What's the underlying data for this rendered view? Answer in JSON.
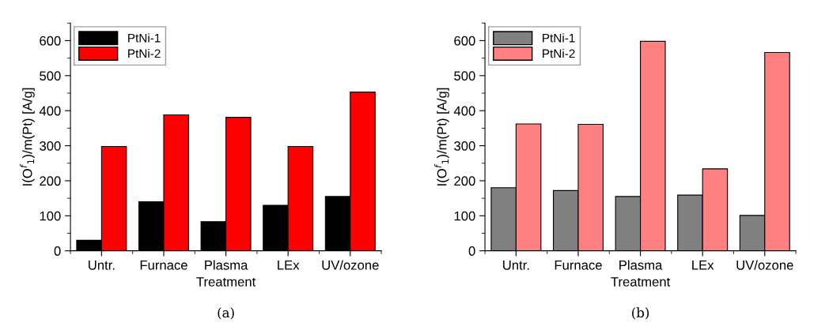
{
  "chart_data": [
    {
      "type": "bar",
      "xlabel": "Treatment",
      "ylabel": "I(O$^{f}$$_{1}$)/m(Pt) [A/g]",
      "categories": [
        "Untr.",
        "Furnace",
        "Plasma",
        "LEx",
        "UV/ozone"
      ],
      "series": [
        {
          "name": "PtNi-1",
          "color": "#000000",
          "values": [
            30,
            140,
            83,
            130,
            155
          ]
        },
        {
          "name": "PtNi-2",
          "color": "#ff0000",
          "values": [
            298,
            388,
            381,
            298,
            453
          ]
        }
      ],
      "ylim": [
        0,
        650
      ],
      "yticks": [
        0,
        100,
        200,
        300,
        400,
        500,
        600
      ],
      "grid": false,
      "legend": "top left",
      "annotations": [
        "(a)"
      ]
    },
    {
      "type": "bar",
      "xlabel": "Treatment",
      "ylabel": "I(O$^{f}$$_{1}$)/m(Pt) [A/g]",
      "categories": [
        "Untr.",
        "Furnace",
        "Plasma",
        "LEx",
        "UV/ozone"
      ],
      "series": [
        {
          "name": "PtNi-1",
          "color": "#808080",
          "values": [
            180,
            172,
            155,
            159,
            101
          ]
        },
        {
          "name": "PtNi-2",
          "color": "#ff8080",
          "values": [
            362,
            361,
            598,
            234,
            566
          ]
        }
      ],
      "ylim": [
        0,
        650
      ],
      "yticks": [
        0,
        100,
        200,
        300,
        400,
        500,
        600
      ],
      "grid": false,
      "legend": "top left",
      "annotations": [
        "(b)"
      ]
    }
  ]
}
